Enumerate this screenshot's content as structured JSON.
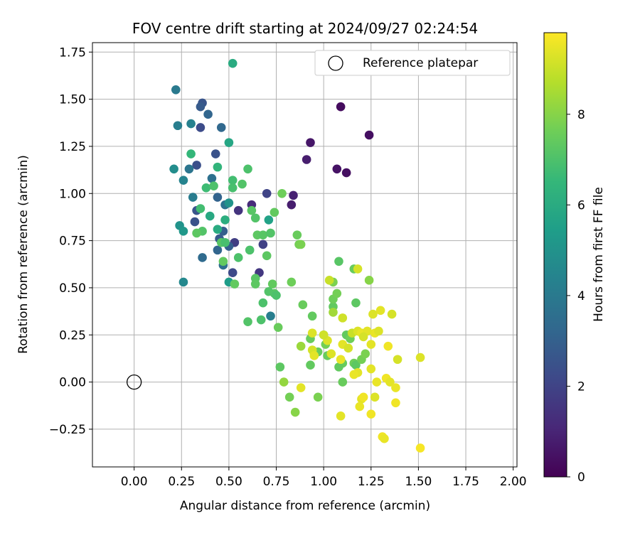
{
  "chart_data": {
    "type": "scatter",
    "title": "FOV centre drift starting at 2024/09/27 02:24:54",
    "xlabel": "Angular distance from reference (arcmin)",
    "ylabel": "Rotation from reference (arcmin)",
    "xlim": [
      -0.22,
      2.02
    ],
    "ylim": [
      -0.45,
      1.8
    ],
    "grid": true,
    "xticks": [
      0.0,
      0.25,
      0.5,
      0.75,
      1.0,
      1.25,
      1.5,
      1.75,
      2.0
    ],
    "xtick_labels": [
      "0.00",
      "0.25",
      "0.50",
      "0.75",
      "1.00",
      "1.25",
      "1.50",
      "1.75",
      "2.00"
    ],
    "yticks": [
      -0.25,
      0.0,
      0.25,
      0.5,
      0.75,
      1.0,
      1.25,
      1.5,
      1.75
    ],
    "ytick_labels": [
      "−0.25",
      "0.00",
      "0.25",
      "0.50",
      "0.75",
      "1.00",
      "1.25",
      "1.50",
      "1.75"
    ],
    "legend": {
      "placement": "top-right",
      "entries": [
        {
          "label": "Reference platepar",
          "marker": "open-circle"
        }
      ]
    },
    "reference_point": {
      "x": 0.0,
      "y": 0.0
    },
    "colorbar": {
      "label": "Hours from first FF file",
      "colormap": "viridis",
      "range": [
        0,
        9.8
      ],
      "ticks": [
        0,
        2,
        4,
        6,
        8
      ],
      "tick_labels": [
        "0",
        "2",
        "4",
        "6",
        "8"
      ]
    },
    "colormap_stops": [
      "#440154",
      "#482878",
      "#3e4989",
      "#31688e",
      "#26828e",
      "#1f9e89",
      "#35b779",
      "#6ece58",
      "#b5de2b",
      "#fde725"
    ],
    "points": [
      {
        "x": 1.09,
        "y": 1.46,
        "c": 0.3
      },
      {
        "x": 1.24,
        "y": 1.31,
        "c": 0.4
      },
      {
        "x": 1.12,
        "y": 1.11,
        "c": 0.4
      },
      {
        "x": 1.07,
        "y": 1.13,
        "c": 0.5
      },
      {
        "x": 0.93,
        "y": 1.27,
        "c": 0.6
      },
      {
        "x": 0.91,
        "y": 1.18,
        "c": 0.8
      },
      {
        "x": 0.84,
        "y": 0.99,
        "c": 0.9
      },
      {
        "x": 0.83,
        "y": 0.94,
        "c": 0.8
      },
      {
        "x": 0.62,
        "y": 0.94,
        "c": 1.2
      },
      {
        "x": 0.55,
        "y": 0.91,
        "c": 1.5
      },
      {
        "x": 0.66,
        "y": 0.58,
        "c": 1.6
      },
      {
        "x": 0.53,
        "y": 0.74,
        "c": 1.8
      },
      {
        "x": 0.68,
        "y": 0.73,
        "c": 1.9
      },
      {
        "x": 0.7,
        "y": 1.0,
        "c": 2.0
      },
      {
        "x": 0.52,
        "y": 0.58,
        "c": 2.2
      },
      {
        "x": 0.35,
        "y": 1.35,
        "c": 2.3
      },
      {
        "x": 0.36,
        "y": 1.48,
        "c": 2.6
      },
      {
        "x": 0.35,
        "y": 1.46,
        "c": 2.8
      },
      {
        "x": 0.33,
        "y": 1.15,
        "c": 2.4
      },
      {
        "x": 0.43,
        "y": 1.21,
        "c": 2.5
      },
      {
        "x": 0.33,
        "y": 0.91,
        "c": 2.6
      },
      {
        "x": 0.32,
        "y": 0.85,
        "c": 2.5
      },
      {
        "x": 0.45,
        "y": 0.76,
        "c": 2.8
      },
      {
        "x": 0.47,
        "y": 0.8,
        "c": 2.9
      },
      {
        "x": 0.5,
        "y": 0.72,
        "c": 3.0
      },
      {
        "x": 0.44,
        "y": 0.98,
        "c": 3.1
      },
      {
        "x": 0.39,
        "y": 1.42,
        "c": 3.2
      },
      {
        "x": 0.46,
        "y": 1.35,
        "c": 3.3
      },
      {
        "x": 0.44,
        "y": 0.7,
        "c": 3.2
      },
      {
        "x": 0.36,
        "y": 0.66,
        "c": 3.4
      },
      {
        "x": 0.47,
        "y": 0.62,
        "c": 3.5
      },
      {
        "x": 0.41,
        "y": 1.08,
        "c": 3.6
      },
      {
        "x": 0.48,
        "y": 0.94,
        "c": 3.7
      },
      {
        "x": 0.29,
        "y": 1.13,
        "c": 3.8
      },
      {
        "x": 0.22,
        "y": 1.55,
        "c": 4.0
      },
      {
        "x": 0.23,
        "y": 1.36,
        "c": 4.2
      },
      {
        "x": 0.3,
        "y": 1.37,
        "c": 4.3
      },
      {
        "x": 0.31,
        "y": 0.98,
        "c": 4.1
      },
      {
        "x": 0.26,
        "y": 1.07,
        "c": 4.4
      },
      {
        "x": 0.72,
        "y": 0.35,
        "c": 4.2
      },
      {
        "x": 0.26,
        "y": 0.53,
        "c": 4.6
      },
      {
        "x": 0.21,
        "y": 1.13,
        "c": 4.8
      },
      {
        "x": 0.24,
        "y": 0.83,
        "c": 5.0
      },
      {
        "x": 0.26,
        "y": 0.8,
        "c": 5.2
      },
      {
        "x": 0.5,
        "y": 0.95,
        "c": 5.0
      },
      {
        "x": 0.5,
        "y": 0.53,
        "c": 5.4
      },
      {
        "x": 0.71,
        "y": 0.86,
        "c": 5.6
      },
      {
        "x": 0.5,
        "y": 1.27,
        "c": 5.8
      },
      {
        "x": 0.52,
        "y": 1.69,
        "c": 6.0
      },
      {
        "x": 0.4,
        "y": 0.88,
        "c": 5.9
      },
      {
        "x": 0.48,
        "y": 0.86,
        "c": 6.1
      },
      {
        "x": 0.44,
        "y": 0.81,
        "c": 6.0
      },
      {
        "x": 0.3,
        "y": 1.21,
        "c": 6.5
      },
      {
        "x": 0.35,
        "y": 0.92,
        "c": 6.8
      },
      {
        "x": 0.44,
        "y": 1.14,
        "c": 6.4
      },
      {
        "x": 0.38,
        "y": 1.03,
        "c": 6.7
      },
      {
        "x": 0.42,
        "y": 1.04,
        "c": 7.0
      },
      {
        "x": 0.52,
        "y": 1.07,
        "c": 6.8
      },
      {
        "x": 0.52,
        "y": 1.03,
        "c": 6.9
      },
      {
        "x": 0.57,
        "y": 1.05,
        "c": 7.1
      },
      {
        "x": 0.6,
        "y": 1.13,
        "c": 7.0
      },
      {
        "x": 0.46,
        "y": 0.74,
        "c": 7.2
      },
      {
        "x": 0.36,
        "y": 0.8,
        "c": 7.1
      },
      {
        "x": 0.33,
        "y": 0.79,
        "c": 7.3
      },
      {
        "x": 0.55,
        "y": 0.66,
        "c": 7.0
      },
      {
        "x": 0.47,
        "y": 0.64,
        "c": 7.4
      },
      {
        "x": 0.48,
        "y": 0.74,
        "c": 6.9
      },
      {
        "x": 0.62,
        "y": 0.91,
        "c": 7.2
      },
      {
        "x": 0.64,
        "y": 0.87,
        "c": 7.1
      },
      {
        "x": 0.65,
        "y": 0.78,
        "c": 7.3
      },
      {
        "x": 0.68,
        "y": 0.78,
        "c": 7.2
      },
      {
        "x": 0.72,
        "y": 0.79,
        "c": 7.1
      },
      {
        "x": 0.7,
        "y": 0.67,
        "c": 7.3
      },
      {
        "x": 0.61,
        "y": 0.7,
        "c": 7.0
      },
      {
        "x": 0.64,
        "y": 0.55,
        "c": 7.2
      },
      {
        "x": 0.64,
        "y": 0.52,
        "c": 7.3
      },
      {
        "x": 0.53,
        "y": 0.52,
        "c": 7.4
      },
      {
        "x": 0.68,
        "y": 0.42,
        "c": 7.0
      },
      {
        "x": 0.73,
        "y": 0.52,
        "c": 7.4
      },
      {
        "x": 0.74,
        "y": 0.47,
        "c": 7.2
      },
      {
        "x": 0.71,
        "y": 0.48,
        "c": 7.1
      },
      {
        "x": 0.75,
        "y": 0.46,
        "c": 7.0
      },
      {
        "x": 0.6,
        "y": 0.32,
        "c": 7.1
      },
      {
        "x": 0.67,
        "y": 0.33,
        "c": 7.0
      },
      {
        "x": 0.76,
        "y": 0.29,
        "c": 7.5
      },
      {
        "x": 0.77,
        "y": 0.08,
        "c": 7.3
      },
      {
        "x": 0.78,
        "y": 1.0,
        "c": 7.6
      },
      {
        "x": 0.74,
        "y": 0.9,
        "c": 7.4
      },
      {
        "x": 0.86,
        "y": 0.78,
        "c": 7.5
      },
      {
        "x": 0.87,
        "y": 0.73,
        "c": 7.7
      },
      {
        "x": 0.88,
        "y": 0.73,
        "c": 7.8
      },
      {
        "x": 0.83,
        "y": 0.53,
        "c": 7.6
      },
      {
        "x": 0.89,
        "y": 0.41,
        "c": 7.5
      },
      {
        "x": 0.94,
        "y": 0.35,
        "c": 7.4
      },
      {
        "x": 0.93,
        "y": 0.23,
        "c": 7.5
      },
      {
        "x": 0.95,
        "y": 0.15,
        "c": 7.6
      },
      {
        "x": 0.93,
        "y": 0.09,
        "c": 7.4
      },
      {
        "x": 0.97,
        "y": 0.16,
        "c": 7.5
      },
      {
        "x": 1.0,
        "y": 0.25,
        "c": 7.6
      },
      {
        "x": 1.01,
        "y": 0.2,
        "c": 7.7
      },
      {
        "x": 1.02,
        "y": 0.14,
        "c": 7.5
      },
      {
        "x": 1.05,
        "y": 0.4,
        "c": 7.4
      },
      {
        "x": 1.05,
        "y": 0.44,
        "c": 7.6
      },
      {
        "x": 1.07,
        "y": 0.47,
        "c": 7.7
      },
      {
        "x": 1.05,
        "y": 0.53,
        "c": 7.8
      },
      {
        "x": 1.08,
        "y": 0.64,
        "c": 7.2
      },
      {
        "x": 1.16,
        "y": 0.6,
        "c": 7.5
      },
      {
        "x": 1.17,
        "y": 0.42,
        "c": 7.3
      },
      {
        "x": 1.12,
        "y": 0.25,
        "c": 7.4
      },
      {
        "x": 1.14,
        "y": 0.23,
        "c": 7.6
      },
      {
        "x": 1.1,
        "y": 0.1,
        "c": 7.5
      },
      {
        "x": 1.08,
        "y": 0.08,
        "c": 7.4
      },
      {
        "x": 1.16,
        "y": 0.1,
        "c": 7.6
      },
      {
        "x": 1.17,
        "y": 0.09,
        "c": 7.3
      },
      {
        "x": 1.2,
        "y": 0.12,
        "c": 7.7
      },
      {
        "x": 1.22,
        "y": 0.15,
        "c": 7.8
      },
      {
        "x": 1.24,
        "y": 0.54,
        "c": 8.0
      },
      {
        "x": 1.1,
        "y": 0.0,
        "c": 7.5
      },
      {
        "x": 0.97,
        "y": -0.08,
        "c": 7.8
      },
      {
        "x": 0.82,
        "y": -0.08,
        "c": 7.7
      },
      {
        "x": 0.85,
        "y": -0.16,
        "c": 8.0
      },
      {
        "x": 0.79,
        "y": 0.0,
        "c": 8.2
      },
      {
        "x": 0.88,
        "y": 0.19,
        "c": 8.3
      },
      {
        "x": 1.05,
        "y": 0.37,
        "c": 8.4
      },
      {
        "x": 1.15,
        "y": 0.26,
        "c": 9.0
      },
      {
        "x": 1.18,
        "y": 0.6,
        "c": 9.2
      },
      {
        "x": 1.03,
        "y": 0.54,
        "c": 9.0
      },
      {
        "x": 1.1,
        "y": 0.34,
        "c": 9.1
      },
      {
        "x": 1.26,
        "y": 0.36,
        "c": 9.3
      },
      {
        "x": 1.3,
        "y": 0.38,
        "c": 9.4
      },
      {
        "x": 1.36,
        "y": 0.36,
        "c": 9.2
      },
      {
        "x": 1.27,
        "y": 0.26,
        "c": 9.5
      },
      {
        "x": 1.29,
        "y": 0.27,
        "c": 9.3
      },
      {
        "x": 1.25,
        "y": 0.2,
        "c": 9.4
      },
      {
        "x": 1.34,
        "y": 0.19,
        "c": 9.6
      },
      {
        "x": 1.39,
        "y": 0.12,
        "c": 9.2
      },
      {
        "x": 1.51,
        "y": 0.13,
        "c": 9.3
      },
      {
        "x": 1.25,
        "y": 0.07,
        "c": 9.4
      },
      {
        "x": 1.28,
        "y": 0.0,
        "c": 9.5
      },
      {
        "x": 1.33,
        "y": 0.02,
        "c": 9.6
      },
      {
        "x": 1.35,
        "y": 0.0,
        "c": 9.4
      },
      {
        "x": 1.38,
        "y": -0.03,
        "c": 9.5
      },
      {
        "x": 1.38,
        "y": -0.11,
        "c": 9.6
      },
      {
        "x": 1.27,
        "y": -0.08,
        "c": 9.3
      },
      {
        "x": 1.2,
        "y": -0.09,
        "c": 9.4
      },
      {
        "x": 1.19,
        "y": -0.13,
        "c": 9.5
      },
      {
        "x": 1.25,
        "y": -0.17,
        "c": 9.6
      },
      {
        "x": 1.09,
        "y": -0.18,
        "c": 9.4
      },
      {
        "x": 1.31,
        "y": -0.29,
        "c": 9.6
      },
      {
        "x": 1.32,
        "y": -0.3,
        "c": 9.5
      },
      {
        "x": 1.51,
        "y": -0.35,
        "c": 9.7
      },
      {
        "x": 0.88,
        "y": -0.03,
        "c": 9.4
      },
      {
        "x": 0.94,
        "y": 0.26,
        "c": 9.3
      },
      {
        "x": 0.94,
        "y": 0.17,
        "c": 9.2
      },
      {
        "x": 0.95,
        "y": 0.14,
        "c": 9.4
      },
      {
        "x": 1.04,
        "y": 0.15,
        "c": 9.3
      },
      {
        "x": 1.09,
        "y": 0.12,
        "c": 9.5
      },
      {
        "x": 1.1,
        "y": 0.2,
        "c": 9.4
      },
      {
        "x": 1.13,
        "y": 0.18,
        "c": 9.2
      },
      {
        "x": 1.18,
        "y": 0.27,
        "c": 9.3
      },
      {
        "x": 1.2,
        "y": 0.26,
        "c": 9.5
      },
      {
        "x": 1.23,
        "y": 0.27,
        "c": 9.4
      },
      {
        "x": 1.21,
        "y": 0.24,
        "c": 9.2
      },
      {
        "x": 1.18,
        "y": 0.05,
        "c": 9.4
      },
      {
        "x": 1.16,
        "y": 0.04,
        "c": 9.5
      },
      {
        "x": 1.21,
        "y": -0.08,
        "c": 9.6
      },
      {
        "x": 1.02,
        "y": 0.22,
        "c": 9.3
      },
      {
        "x": 1.0,
        "y": 0.25,
        "c": 9.1
      }
    ]
  }
}
